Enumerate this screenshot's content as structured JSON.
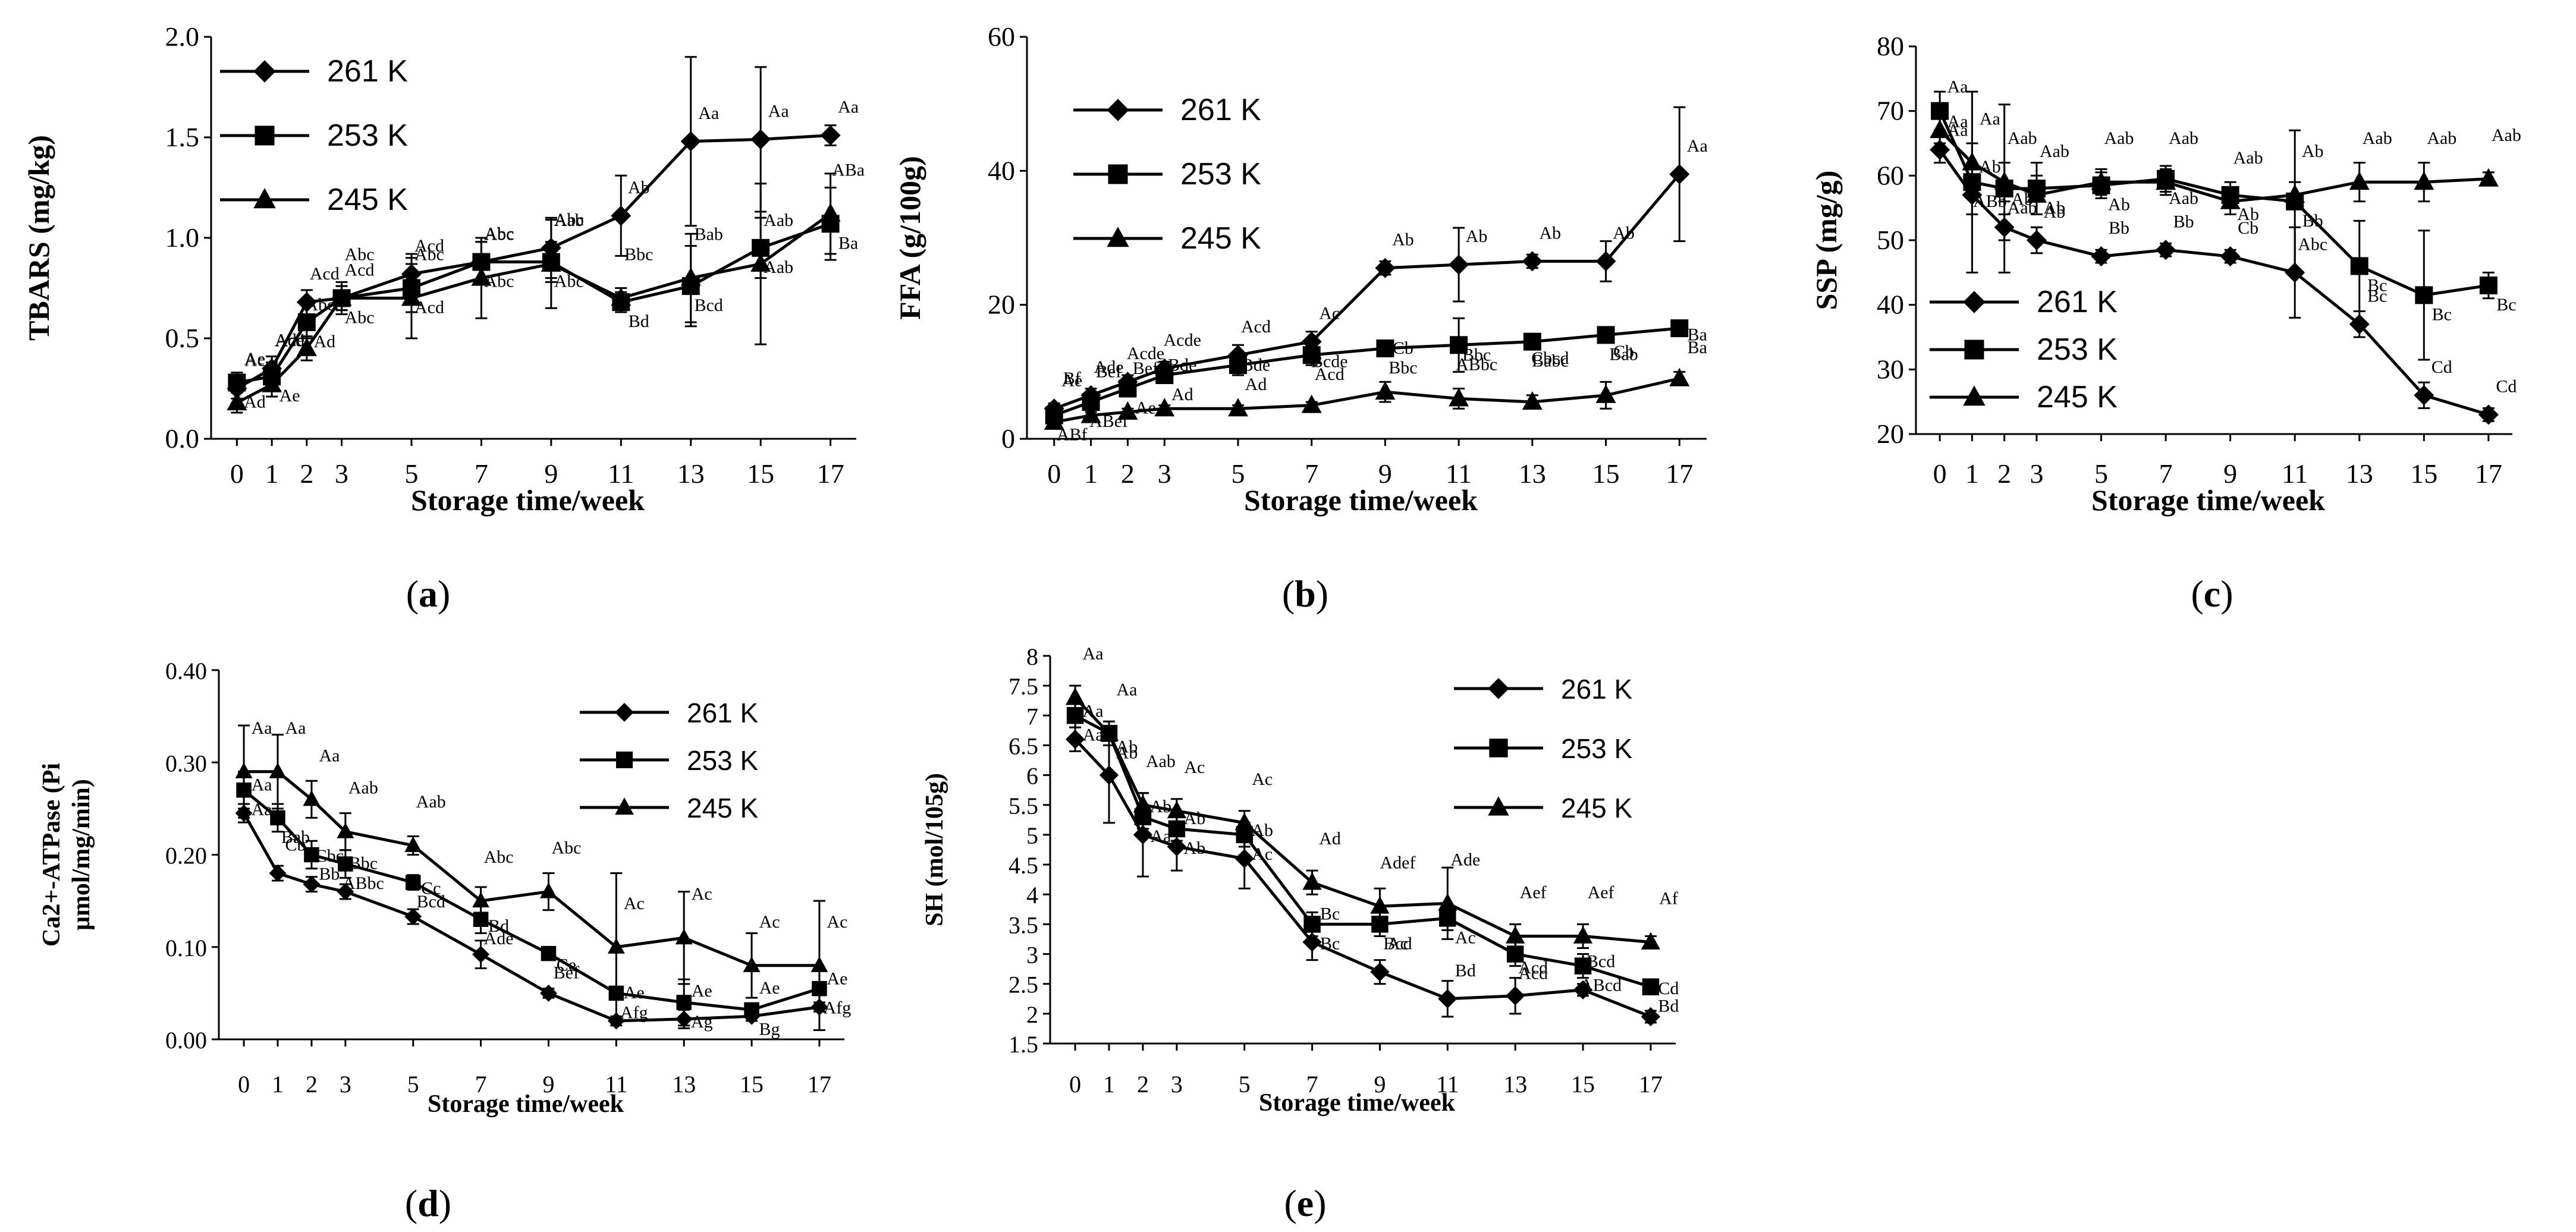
{
  "chart_data": [
    {
      "id": "a",
      "type": "line",
      "panel_label": "a",
      "xlabel": "Storage time/week",
      "ylabel": "TBARS (mg/kg)",
      "x": [
        0,
        1,
        2,
        3,
        5,
        7,
        9,
        11,
        13,
        15,
        17
      ],
      "x_ticks": [
        "0",
        "1",
        "2",
        "3",
        "5",
        "7",
        "9",
        "11",
        "13",
        "15",
        "17"
      ],
      "ylim": [
        0,
        2
      ],
      "y_ticks": [
        "0.0",
        "0.5",
        "1.0",
        "1.5",
        "2.0"
      ],
      "y_tick_values": [
        0,
        0.5,
        1.0,
        1.5,
        2.0
      ],
      "legend_position": "top-left",
      "series": [
        {
          "name": "261 K",
          "marker": "diamond",
          "values": [
            0.25,
            0.35,
            0.68,
            0.7,
            0.82,
            0.88,
            0.95,
            1.11,
            1.48,
            1.49,
            1.51
          ],
          "errors": [
            0.05,
            0.06,
            0.06,
            0.06,
            0.1,
            0.1,
            0.15,
            0.2,
            0.42,
            0.36,
            0.05
          ],
          "labels": [
            "Ac",
            "Ade",
            "Acd",
            "Acd",
            "Acd",
            "Abc",
            "Abc",
            "Ab",
            "Aa",
            "Aa",
            "Aa"
          ]
        },
        {
          "name": "253 K",
          "marker": "square",
          "values": [
            0.28,
            0.31,
            0.58,
            0.7,
            0.75,
            0.88,
            0.88,
            0.68,
            0.76,
            0.95,
            1.07
          ],
          "errors": [
            0.05,
            0.07,
            0.08,
            0.08,
            0.12,
            0.1,
            0.1,
            0.05,
            0.2,
            0.15,
            0.18
          ],
          "labels": [
            "Ad",
            "Ae",
            "Ad",
            "Abc",
            "Acd",
            "Abc",
            "Abc",
            "Bd",
            "Bcd",
            "Aab",
            "Ba"
          ]
        },
        {
          "name": "245 K",
          "marker": "triangle",
          "values": [
            0.18,
            0.27,
            0.45,
            0.7,
            0.7,
            0.8,
            0.87,
            0.7,
            0.8,
            0.87,
            1.12
          ],
          "errors": [
            0.05,
            0.06,
            0.06,
            0.06,
            0.2,
            0.2,
            0.22,
            0.05,
            0.22,
            0.4,
            0.2
          ],
          "labels": [
            "Ae",
            "Acd",
            "Abcd",
            "Abc",
            "Abc",
            "Abc",
            "Aab",
            "Bbc",
            "Bab",
            "Aab",
            "ABa"
          ]
        }
      ]
    },
    {
      "id": "b",
      "type": "line",
      "panel_label": "b",
      "xlabel": "Storage time/week",
      "ylabel": "FFA (g/100g)",
      "x": [
        0,
        1,
        2,
        3,
        5,
        7,
        9,
        11,
        13,
        15,
        17
      ],
      "x_ticks": [
        "0",
        "1",
        "2",
        "3",
        "5",
        "7",
        "9",
        "11",
        "13",
        "15",
        "17"
      ],
      "ylim": [
        0,
        60
      ],
      "y_ticks": [
        "0",
        "20",
        "40",
        "60"
      ],
      "y_tick_values": [
        0,
        20,
        40,
        60
      ],
      "legend_position": "top-left",
      "series": [
        {
          "name": "261 K",
          "marker": "diamond",
          "values": [
            4.5,
            6.5,
            8.5,
            10.5,
            12.5,
            14.5,
            25.5,
            26,
            26.5,
            26.5,
            39.5
          ],
          "errors": [
            0.8,
            1,
            1,
            1,
            1.5,
            1.5,
            1,
            5.5,
            1,
            3,
            10
          ],
          "labels": [
            "Ae",
            "Ade",
            "Acde",
            "Acde",
            "Acd",
            "Ac",
            "Ab",
            "Ab",
            "Ab",
            "Ab",
            "Aa"
          ]
        },
        {
          "name": "253 K",
          "marker": "square",
          "values": [
            3.5,
            5.5,
            7.5,
            9.5,
            11,
            12.5,
            13.5,
            14,
            14.5,
            15.5,
            16.5
          ],
          "errors": [
            0.8,
            1,
            1,
            1,
            1.5,
            1.5,
            1,
            4,
            1,
            1,
            1
          ],
          "labels": [
            "ABf",
            "ABef",
            "Ae",
            "Ad",
            "Ad",
            "Acd",
            "Bbc",
            "ABbc",
            "Babc",
            "Bab",
            "Ba"
          ]
        },
        {
          "name": "245 K",
          "marker": "triangle",
          "values": [
            2.5,
            3.5,
            4,
            4.5,
            4.5,
            5,
            7,
            6,
            5.5,
            6.5,
            9
          ],
          "errors": [
            0.5,
            0.5,
            0.5,
            0.5,
            0.5,
            0.5,
            1.5,
            1.5,
            1,
            2,
            1
          ],
          "labels": [
            "Bf",
            "Bef",
            "Bef",
            "Bde",
            "Bde",
            "Bcde",
            "Cb",
            "Bbc",
            "Cbcd",
            "Cb",
            "Ba"
          ]
        }
      ]
    },
    {
      "id": "c",
      "type": "line",
      "panel_label": "c",
      "xlabel": "Storage time/week",
      "ylabel": "SSP (mg/g)",
      "x": [
        0,
        1,
        2,
        3,
        5,
        7,
        9,
        11,
        13,
        15,
        17
      ],
      "x_ticks": [
        "0",
        "1",
        "2",
        "3",
        "5",
        "7",
        "9",
        "11",
        "13",
        "15",
        "17"
      ],
      "ylim": [
        20,
        80
      ],
      "y_ticks": [
        "20",
        "30",
        "40",
        "50",
        "60",
        "70",
        "80"
      ],
      "y_tick_values": [
        20,
        30,
        40,
        50,
        60,
        70,
        80
      ],
      "legend_position": "bottom-left",
      "series": [
        {
          "name": "261 K",
          "marker": "diamond",
          "values": [
            64,
            57,
            52,
            50,
            47.5,
            48.5,
            47.5,
            45,
            37,
            26,
            23
          ],
          "errors": [
            2,
            3,
            2,
            2,
            1,
            1,
            1,
            7,
            2,
            2,
            1
          ],
          "labels": [
            "Aa",
            "Ab",
            "Ab",
            "Ab",
            "Bb",
            "Bb",
            "Cb",
            "Abc",
            "Bc",
            "Cd",
            "Cd"
          ]
        },
        {
          "name": "253 K",
          "marker": "square",
          "values": [
            70,
            59,
            58,
            58,
            58.5,
            59.5,
            57,
            56,
            46,
            41.5,
            43
          ],
          "errors": [
            3,
            14,
            13,
            4,
            2,
            2,
            2,
            11,
            7,
            10,
            2
          ],
          "labels": [
            "Aa",
            "ABb",
            "Aab",
            "Ab",
            "Ab",
            "Aab",
            "Ab",
            "Bb",
            "Bc",
            "Bc",
            "Bc"
          ]
        },
        {
          "name": "245 K",
          "marker": "triangle",
          "values": [
            67,
            62,
            59,
            57,
            59,
            59,
            56,
            57,
            59,
            59,
            59.5
          ],
          "errors": [
            2,
            3,
            3,
            3,
            2,
            2,
            2,
            2,
            3,
            3,
            1
          ],
          "labels": [
            "Aa",
            "Aa",
            "Aab",
            "Aab",
            "Aab",
            "Aab",
            "Aab",
            "Ab",
            "Aab",
            "Aab",
            "Aab"
          ]
        }
      ]
    },
    {
      "id": "d",
      "type": "line",
      "panel_label": "d",
      "xlabel": "Storage time/week",
      "ylabel": "Ca2+-ATPase (Pi μmol/mg/min)",
      "ylabel_lines": [
        "Ca2+-ATPase (Pi",
        "μmol/mg/min)"
      ],
      "x": [
        0,
        1,
        2,
        3,
        5,
        7,
        9,
        11,
        13,
        15,
        17
      ],
      "x_ticks": [
        "0",
        "1",
        "2",
        "3",
        "5",
        "7",
        "9",
        "11",
        "13",
        "15",
        "17"
      ],
      "ylim": [
        0,
        0.4
      ],
      "y_ticks": [
        "0.00",
        "0.10",
        "0.20",
        "0.30",
        "0.40"
      ],
      "y_tick_values": [
        0,
        0.1,
        0.2,
        0.3,
        0.4
      ],
      "legend_position": "top-right",
      "series": [
        {
          "name": "261 K",
          "marker": "diamond",
          "values": [
            0.245,
            0.18,
            0.168,
            0.16,
            0.133,
            0.092,
            0.05,
            0.02,
            0.022,
            0.025,
            0.035
          ],
          "errors": [
            0.01,
            0.008,
            0.008,
            0.008,
            0.008,
            0.015,
            0.005,
            0.005,
            0.01,
            0.005,
            0.005
          ],
          "labels": [
            "Aa",
            "Cb",
            "Cbc",
            "Bbc",
            "Cc",
            "Bd",
            "Ce",
            "Ae",
            "Ae",
            "Ae",
            "Ae"
          ]
        },
        {
          "name": "253 K",
          "marker": "square",
          "values": [
            0.27,
            0.24,
            0.2,
            0.19,
            0.17,
            0.13,
            0.093,
            0.05,
            0.04,
            0.032,
            0.055
          ],
          "errors": [
            0.02,
            0.015,
            0.015,
            0.015,
            0.008,
            0.015,
            0.005,
            0.005,
            0.025,
            0.005,
            0.02
          ],
          "labels": [
            "Aa",
            "Bab",
            "Bb",
            "ABbc",
            "Bcd",
            "Ade",
            "Bef",
            "Afg",
            "Ag",
            "Bg",
            "Afg"
          ]
        },
        {
          "name": "245 K",
          "marker": "triangle",
          "values": [
            0.29,
            0.29,
            0.26,
            0.225,
            0.21,
            0.15,
            0.16,
            0.1,
            0.11,
            0.08,
            0.08
          ],
          "errors": [
            0.05,
            0.04,
            0.02,
            0.02,
            0.01,
            0.015,
            0.02,
            0.08,
            0.05,
            0.035,
            0.07
          ],
          "labels": [
            "Aa",
            "Aa",
            "Aa",
            "Aab",
            "Aab",
            "Abc",
            "Abc",
            "Ac",
            "Ac",
            "Ac",
            "Ac"
          ]
        }
      ]
    },
    {
      "id": "e",
      "type": "line",
      "panel_label": "e",
      "xlabel": "Storage time/week",
      "ylabel": "SH (mol/105g)",
      "x": [
        0,
        1,
        2,
        3,
        5,
        7,
        9,
        11,
        13,
        15,
        17
      ],
      "x_ticks": [
        "0",
        "1",
        "2",
        "3",
        "5",
        "7",
        "9",
        "11",
        "13",
        "15",
        "17"
      ],
      "ylim": [
        1.5,
        8
      ],
      "y_ticks": [
        "1.5",
        "2",
        "2.5",
        "3",
        "3.5",
        "4",
        "4.5",
        "5",
        "5.5",
        "6",
        "6.5",
        "7",
        "7.5",
        "8"
      ],
      "y_tick_values": [
        1.5,
        2,
        2.5,
        3,
        3.5,
        4,
        4.5,
        5,
        5.5,
        6,
        6.5,
        7,
        7.5,
        8
      ],
      "legend_position": "top-right",
      "series": [
        {
          "name": "261 K",
          "marker": "diamond",
          "values": [
            6.6,
            6,
            5,
            4.8,
            4.6,
            3.2,
            2.7,
            2.25,
            2.3,
            2.4,
            1.95
          ],
          "errors": [
            0.2,
            0.8,
            0.7,
            0.4,
            0.5,
            0.3,
            0.2,
            0.3,
            0.3,
            0.1,
            0.1
          ],
          "labels": [
            "Aa",
            "Ab",
            "Ab",
            "Ab",
            "Ab",
            "Bc",
            "Bcd",
            "Bd",
            "Acd",
            "Bcd",
            "Cd"
          ]
        },
        {
          "name": "253 K",
          "marker": "square",
          "values": [
            7,
            6.7,
            5.3,
            5.1,
            5,
            3.5,
            3.5,
            3.6,
            3,
            2.8,
            2.45
          ],
          "errors": [
            0.2,
            0.2,
            0.2,
            0.2,
            0.2,
            0.2,
            0.2,
            0.2,
            0.2,
            0.2,
            0.1
          ],
          "labels": [
            "Aa",
            "Ab",
            "Aa",
            "Ab",
            "Ac",
            "Bc",
            "Ac",
            "Ac",
            "Acd",
            "ABcd",
            "Bd"
          ]
        },
        {
          "name": "245 K",
          "marker": "triangle",
          "values": [
            7.3,
            6.7,
            5.5,
            5.4,
            5.2,
            4.2,
            3.8,
            3.85,
            3.3,
            3.3,
            3.2
          ],
          "errors": [
            0.2,
            0.2,
            0.2,
            0.2,
            0.2,
            0.2,
            0.3,
            0.6,
            0.2,
            0.2,
            0.1
          ],
          "labels": [
            "Aa",
            "Aa",
            "Aab",
            "Ac",
            "Ac",
            "Ad",
            "Adef",
            "Ade",
            "Aef",
            "Aef",
            "Af"
          ]
        }
      ]
    }
  ]
}
